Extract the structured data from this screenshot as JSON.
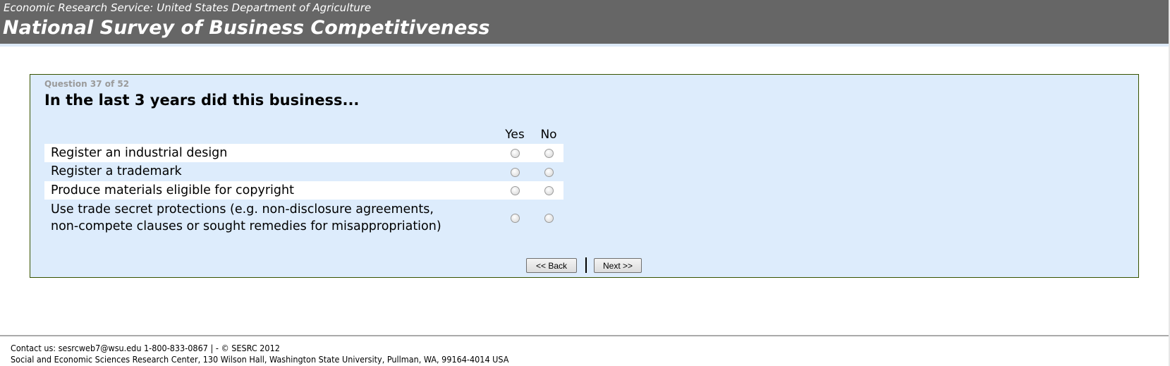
{
  "header": {
    "agency": "Economic Research Service: United States Department of Agriculture",
    "title": "National Survey of Business Competitiveness"
  },
  "question": {
    "progress": "Question 37 of 52",
    "text": "In the last 3 years did this business...",
    "columns": [
      "Yes",
      "No"
    ],
    "items": [
      {
        "label": "Register an industrial design",
        "selected": null
      },
      {
        "label": "Register a trademark",
        "selected": null
      },
      {
        "label": "Produce materials eligible for copyright",
        "selected": null
      },
      {
        "label_line1": "Use trade secret protections (e.g. non-disclosure agreements,",
        "label_line2": "non-compete clauses or sought remedies for misappropriation)",
        "selected": null
      }
    ]
  },
  "nav": {
    "back_label": "<< Back",
    "next_label": "Next >>"
  },
  "footer": {
    "contact": "Contact us: sesrcweb7@wsu.edu 1-800-833-0867 | - © SESRC 2012",
    "address": "Social and Economic Sciences Research Center, 130 Wilson Hall, Washington State University, Pullman, WA, 99164-4014 USA"
  },
  "colors": {
    "header_bg": "#666666",
    "panel_bg": "#ddecfc",
    "panel_border": "#375200"
  }
}
